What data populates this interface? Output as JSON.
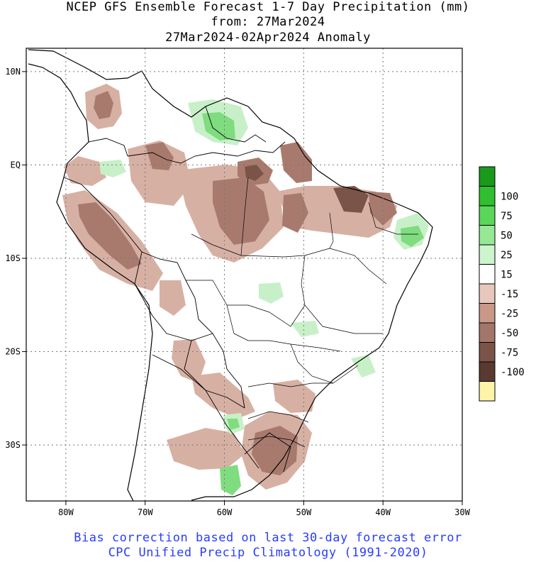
{
  "header": {
    "line1": "NCEP GFS Ensemble Forecast 1-7 Day Precipitation (mm)",
    "line2": "from: 27Mar2024",
    "line3": "27Mar2024-02Apr2024 Anomaly"
  },
  "footer": {
    "line1": "Bias correction based on last 30-day forecast error",
    "line2": "CPC Unified Precip Climatology (1991-2020)"
  },
  "axes": {
    "x_ticks": [
      {
        "value": -80,
        "label": "80W"
      },
      {
        "value": -70,
        "label": "70W"
      },
      {
        "value": -60,
        "label": "60W"
      },
      {
        "value": -50,
        "label": "50W"
      },
      {
        "value": -40,
        "label": "40W"
      },
      {
        "value": -30,
        "label": "30W"
      }
    ],
    "y_ticks": [
      {
        "value": 10,
        "label": "10N"
      },
      {
        "value": 0,
        "label": "EQ"
      },
      {
        "value": -10,
        "label": "10S"
      },
      {
        "value": -20,
        "label": "20S"
      },
      {
        "value": -30,
        "label": "30S"
      }
    ],
    "lon_range": [
      -85,
      -30
    ],
    "lat_range": [
      -36,
      12.5
    ],
    "grid": "dotted"
  },
  "legend": {
    "placement": "right",
    "bins": [
      {
        "label": "",
        "color": "#1a9a1a"
      },
      {
        "label": "100",
        "color": "#2fbf2f"
      },
      {
        "label": "75",
        "color": "#5ad65a"
      },
      {
        "label": "50",
        "color": "#96e896"
      },
      {
        "label": "25",
        "color": "#cdf5cd"
      },
      {
        "label": "15",
        "color": "#ffffff"
      },
      {
        "label": "-15",
        "color": "#e8c8bc"
      },
      {
        "label": "-25",
        "color": "#c99888"
      },
      {
        "label": "-50",
        "color": "#a2766a"
      },
      {
        "label": "-75",
        "color": "#7a5448"
      },
      {
        "label": "-100",
        "color": "#5a3a30"
      },
      {
        "label": "",
        "color": "#fff3a8"
      }
    ]
  },
  "colors": {
    "dry_light": "#d7b0a4",
    "dry_mid": "#a87a6e",
    "dry_dark": "#7a5448",
    "wet_light": "#c8f0c8",
    "wet_mid": "#7fdc7f",
    "wet_dark": "#34b834"
  }
}
